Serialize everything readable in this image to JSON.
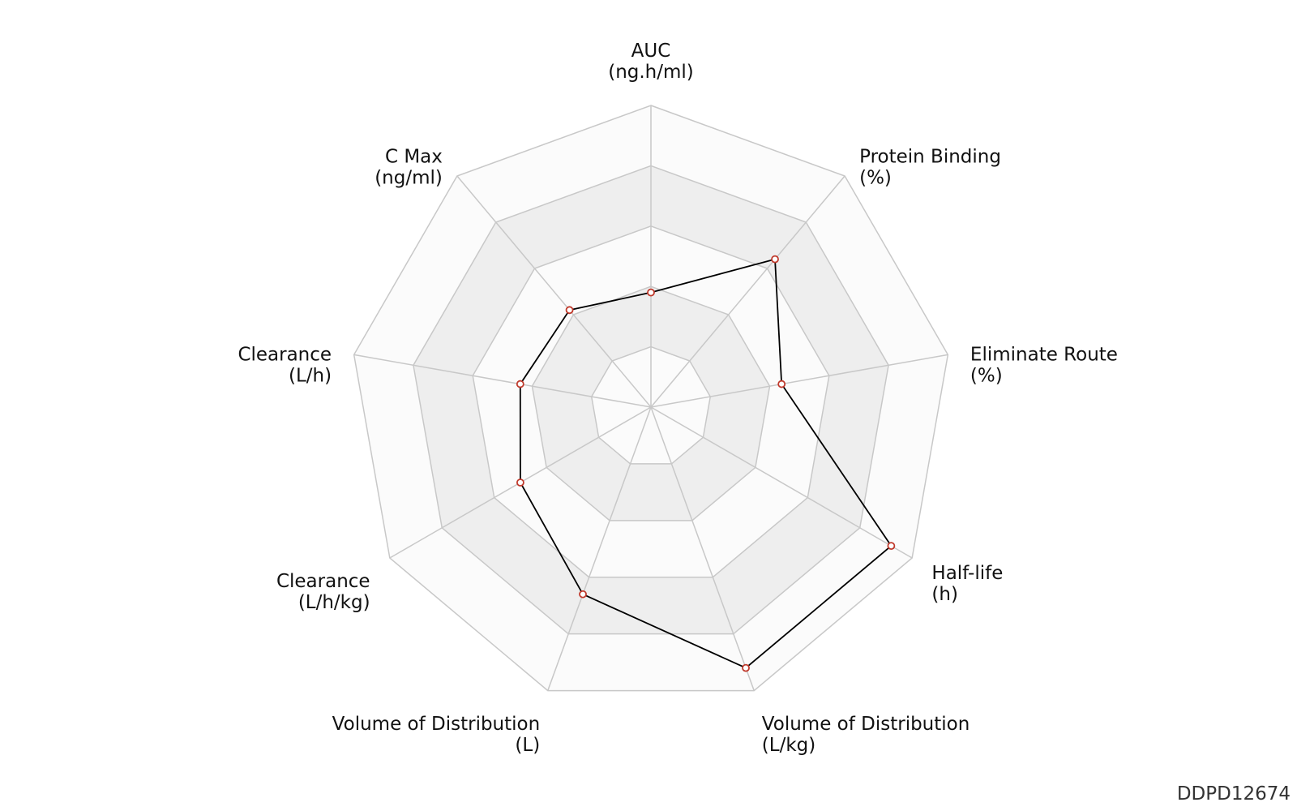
{
  "chart_data": {
    "type": "radar",
    "axes": [
      {
        "name": "AUC",
        "unit": "(ng.h/ml)"
      },
      {
        "name": "Protein Binding",
        "unit": "(%)"
      },
      {
        "name": "Eliminate Route",
        "unit": "(%)"
      },
      {
        "name": "Half-life",
        "unit": "(h)"
      },
      {
        "name": "Volume of Distribution",
        "unit": "(L/kg)"
      },
      {
        "name": "Volume of Distribution",
        "unit": "(L)"
      },
      {
        "name": "Clearance",
        "unit": "(L/h/kg)"
      },
      {
        "name": "Clearance",
        "unit": "(L/h)"
      },
      {
        "name": "C Max",
        "unit": "(ng/ml)"
      }
    ],
    "rlim": [
      0,
      5
    ],
    "rings": 5,
    "series": [
      {
        "values": [
          1.9,
          3.2,
          2.2,
          4.6,
          4.6,
          3.3,
          2.5,
          2.2,
          2.1
        ]
      }
    ],
    "colors": {
      "line": "#000000",
      "marker_stroke": "#c0392b",
      "marker_fill": "#ffffff",
      "grid": "#c8c8c8",
      "band_dark": "#eeeeee",
      "band_light": "#fbfbfb"
    }
  },
  "watermark": "DDPD12674"
}
